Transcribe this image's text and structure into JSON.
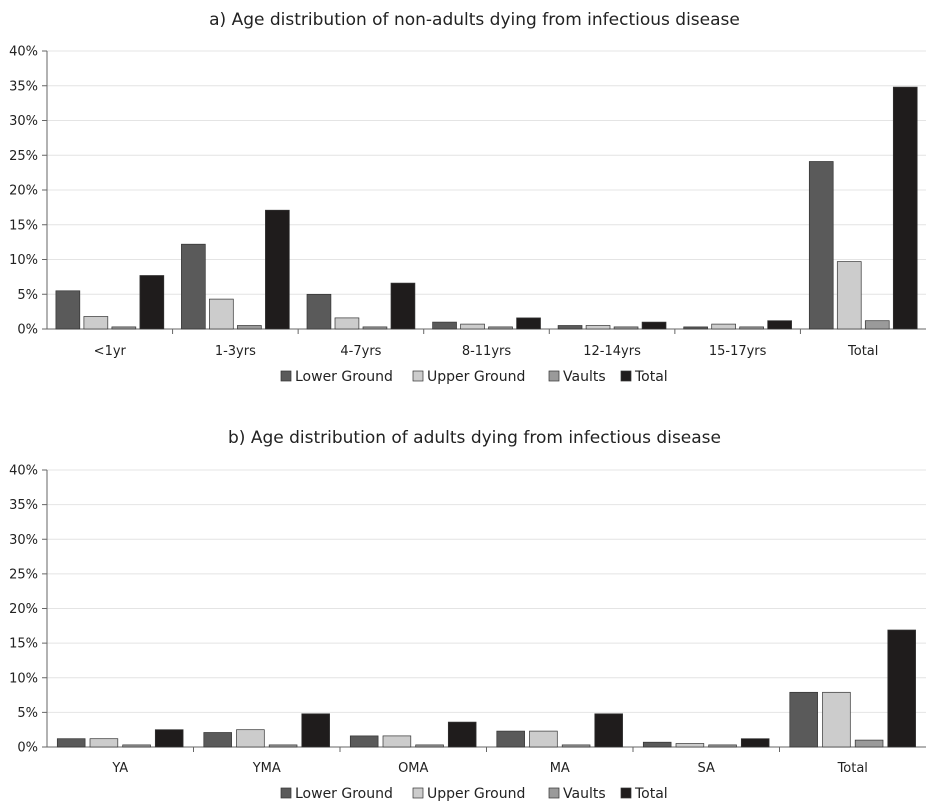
{
  "colors": {
    "Lower Ground": "#5a5a5a",
    "Upper Ground": "#cccccc",
    "Vaults": "#9a9a9a",
    "Total": "#1f1c1c"
  },
  "chart_data": [
    {
      "type": "bar",
      "title": "a) Age distribution of non-adults dying from infectious disease",
      "categories": [
        "<1yr",
        "1-3yrs",
        "4-7yrs",
        "8-11yrs",
        "12-14yrs",
        "15-17yrs",
        "Total"
      ],
      "series": [
        {
          "name": "Lower Ground",
          "values": [
            5.5,
            12.2,
            5.0,
            1.0,
            0.5,
            0.3,
            24.1
          ]
        },
        {
          "name": "Upper Ground",
          "values": [
            1.8,
            4.3,
            1.6,
            0.7,
            0.5,
            0.7,
            9.7
          ]
        },
        {
          "name": "Vaults",
          "values": [
            0.3,
            0.5,
            0.3,
            0.3,
            0.3,
            0.3,
            1.2
          ]
        },
        {
          "name": "Total",
          "values": [
            7.7,
            17.1,
            6.6,
            1.6,
            1.0,
            1.2,
            34.8
          ]
        }
      ],
      "yticks": [
        "0%",
        "5%",
        "10%",
        "15%",
        "20%",
        "25%",
        "30%",
        "35%",
        "40%"
      ],
      "ylim": [
        0,
        40
      ],
      "legend": [
        "Lower Ground",
        "Upper Ground",
        "Vaults",
        "Total"
      ],
      "legend_position": "bottom",
      "grid": true
    },
    {
      "type": "bar",
      "title": "b) Age distribution of adults dying from infectious disease",
      "categories": [
        "YA",
        "YMA",
        "OMA",
        "MA",
        "SA",
        "Total"
      ],
      "series": [
        {
          "name": "Lower Ground",
          "values": [
            1.2,
            2.1,
            1.6,
            2.3,
            0.7,
            7.9
          ]
        },
        {
          "name": "Upper Ground",
          "values": [
            1.2,
            2.5,
            1.6,
            2.3,
            0.5,
            7.9
          ]
        },
        {
          "name": "Vaults",
          "values": [
            0.3,
            0.3,
            0.3,
            0.3,
            0.3,
            1.0
          ]
        },
        {
          "name": "Total",
          "values": [
            2.5,
            4.8,
            3.6,
            4.8,
            1.2,
            16.9
          ]
        }
      ],
      "yticks": [
        "0%",
        "5%",
        "10%",
        "15%",
        "20%",
        "25%",
        "30%",
        "35%",
        "40%"
      ],
      "ylim": [
        0,
        40
      ],
      "legend": [
        "Lower Ground",
        "Upper Ground",
        "Vaults",
        "Total"
      ],
      "legend_position": "bottom",
      "grid": true
    }
  ]
}
